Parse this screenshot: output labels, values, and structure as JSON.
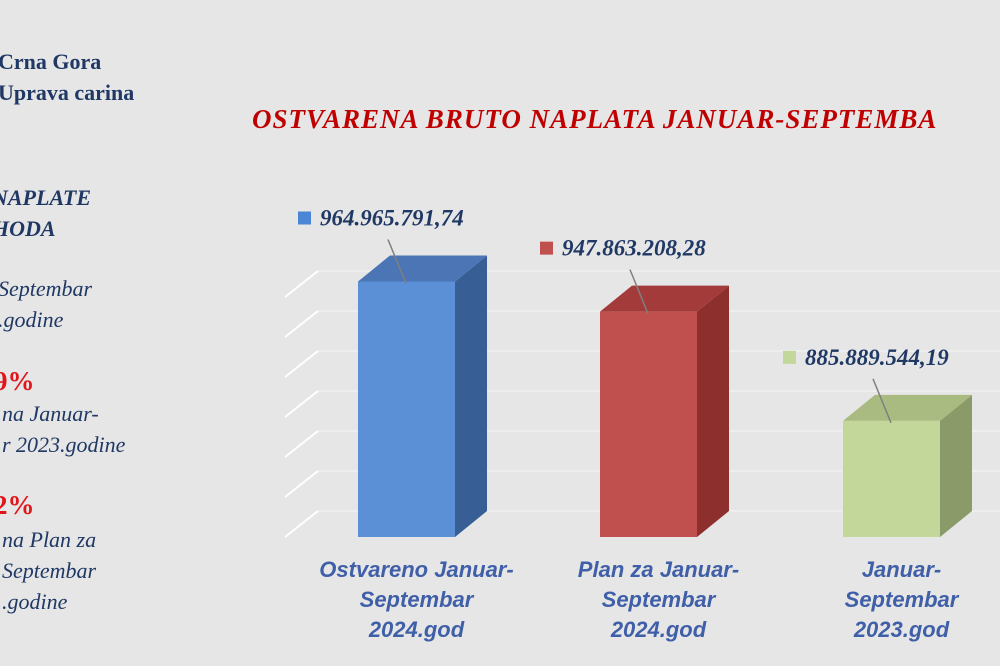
{
  "side_panel": {
    "org_line1": "Crna Gora",
    "org_line2": "Uprava carina",
    "heading_line1": "NAPLATE",
    "heading_line2": "HODA",
    "period_line1": "Septembar",
    "period_line2": ".godine",
    "pct1": "9%",
    "cmp1_line1": "na  Januar-",
    "cmp1_line2": "r 2023.godine",
    "pct2": "2%",
    "cmp2_line1": "na  Plan za",
    "cmp2_line2": "Septembar",
    "cmp2_line3": ".godine"
  },
  "chart_data": {
    "type": "bar",
    "title": "OSTVARENA BRUTO NAPLATA  JANUAR-SEPTEMBA",
    "categories": [
      [
        "Ostvareno Januar-",
        "Septembar",
        "2024.god"
      ],
      [
        "Plan za Januar-",
        "Septembar",
        "2024.god"
      ],
      [
        "Januar-",
        "Septembar",
        "2023.god"
      ]
    ],
    "values": [
      964965791.74,
      947863208.28,
      885889544.19
    ],
    "value_labels": [
      "964.965.791,74",
      "947.863.208,28",
      "885.889.544,19"
    ],
    "colors": [
      "#5b8fd6",
      "#c0504d",
      "#c4d79b"
    ],
    "side_colors": [
      "#375f96",
      "#8c2f2d",
      "#8a9a68"
    ],
    "top_colors": [
      "#4b75b5",
      "#a23b39",
      "#a9bb80"
    ],
    "legend_marker_colors": [
      "#4a86d4",
      "#c0504d",
      "#c4d79b"
    ],
    "ylim": [
      820000000,
      980000000
    ],
    "grid": true
  }
}
